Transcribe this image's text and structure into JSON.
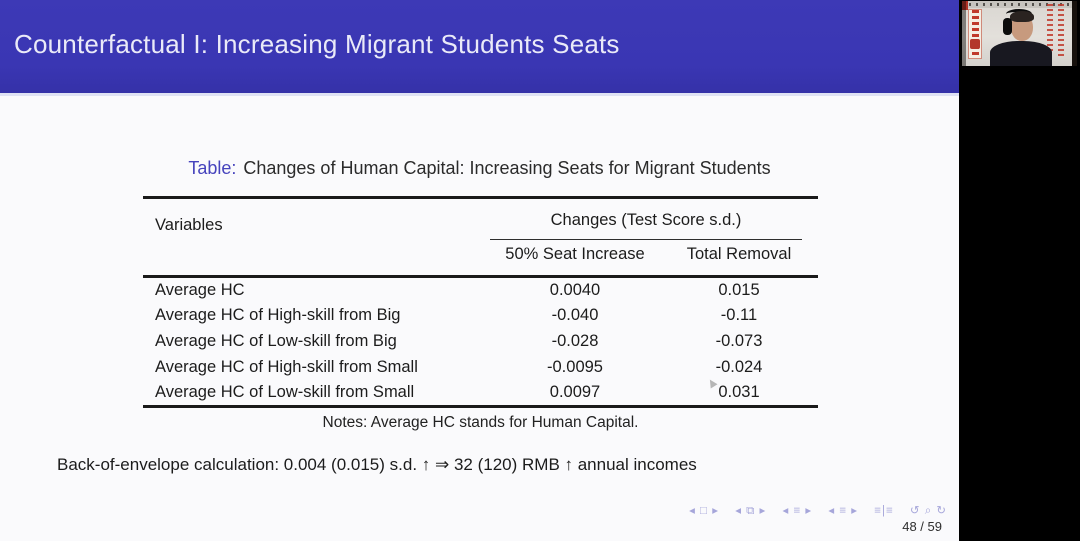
{
  "slide": {
    "title": "Counterfactual I: Increasing Migrant Students Seats",
    "caption": {
      "label": "Table:",
      "text": "Changes of Human Capital: Increasing Seats for Migrant Students"
    },
    "table": {
      "variables_header": "Variables",
      "group_header": "Changes (Test Score s.d.)",
      "col_headers": [
        "50% Seat Increase",
        "Total Removal"
      ],
      "rows": [
        {
          "variable": "Average HC",
          "seat_increase": "0.0040",
          "total_removal": "0.015"
        },
        {
          "variable": "Average HC of High-skill from Big",
          "seat_increase": "-0.040",
          "total_removal": "-0.11"
        },
        {
          "variable": "Average HC of Low-skill from Big",
          "seat_increase": "-0.028",
          "total_removal": "-0.073"
        },
        {
          "variable": "Average HC of High-skill from Small",
          "seat_increase": "-0.0095",
          "total_removal": "-0.024"
        },
        {
          "variable": "Average HC of Low-skill from Small",
          "seat_increase": "0.0097",
          "total_removal": "0.031"
        }
      ],
      "notes": "Notes: Average HC stands for Human Capital."
    },
    "footnote": "Back-of-envelope calculation: 0.004 (0.015) s.d. ↑ ⇒ 32 (120) RMB ↑ annual incomes",
    "nav_groups": [
      "◂ □ ▸",
      "◂ ⧉ ▸",
      "◂ ≡ ▸",
      "◂ ≡ ▸",
      "≡|≡",
      "↺ ⌕ ↻"
    ],
    "page_indicator": "48 / 59"
  },
  "colors": {
    "header_bar": "#3a36b3",
    "caption_accent": "#4643bd",
    "nav_symbols": "#a6a6da",
    "slide_background": "#fafafc",
    "right_strip": "#000000"
  }
}
